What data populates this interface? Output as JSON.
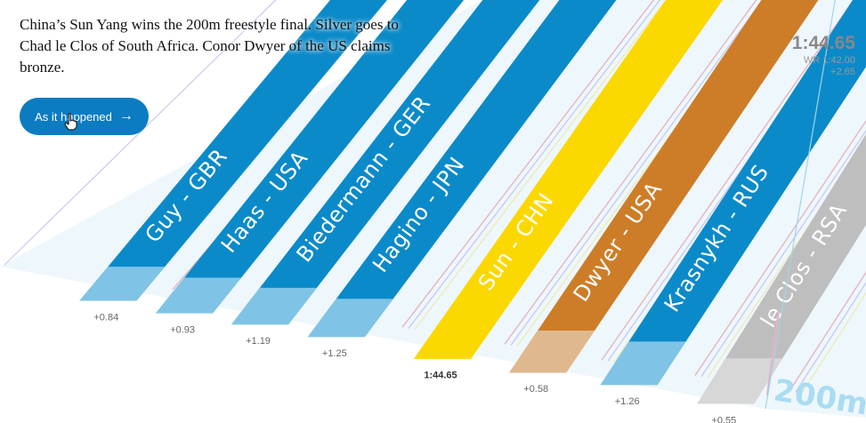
{
  "headline": "China’s Sun Yang wins the 200m freestyle final. Silver goes to Chad le Clos of South Africa. Conor Dwyer of the US claims bronze.",
  "button": {
    "label": "As it happened",
    "icon": "arrow-right-icon"
  },
  "distance_label": "200m",
  "result_panel": {
    "winning_time": "1:44.65",
    "world_record": "WR 1:42.00",
    "wr_gap": "+2.65"
  },
  "colors": {
    "lane_blue": "#0b8ac9",
    "finish_blue": "#7fc4e6",
    "gold": "#fbd800",
    "gold_finish": "#fbd800",
    "bronze": "#cd7d27",
    "bronze_finish": "#dfb98d",
    "silver": "#bebebe",
    "silver_finish": "#d7d7d7",
    "pool_bg": "#eef7fc",
    "rope_pink": "#e3b5c4",
    "rope_purple": "#c9cbef",
    "rope_yellow": "#eeeab8",
    "distance_text": "#a9dcf3"
  },
  "swimmers": [
    {
      "lane_label": "Guy - GBR",
      "result": "+0.84",
      "medal": "none",
      "progress": 0.985
    },
    {
      "lane_label": "Haas - USA",
      "result": "+0.93",
      "medal": "none",
      "progress": 0.984
    },
    {
      "lane_label": "Biedermann - GER",
      "result": "+1.19",
      "medal": "none",
      "progress": 0.978
    },
    {
      "lane_label": "Hagino - JPN",
      "result": "+1.25",
      "medal": "none",
      "progress": 0.977
    },
    {
      "lane_label": "Sun - CHN",
      "result": "1:44.65",
      "medal": "gold",
      "progress": 1.0
    },
    {
      "lane_label": "Dwyer - USA",
      "result": "+0.58",
      "medal": "bronze",
      "progress": 0.99
    },
    {
      "lane_label": "Krasnykh - RUS",
      "result": "+1.26",
      "medal": "none",
      "progress": 0.976
    },
    {
      "lane_label": "le Clos - RSA",
      "result": "+0.55",
      "medal": "silver",
      "progress": 0.991
    }
  ]
}
